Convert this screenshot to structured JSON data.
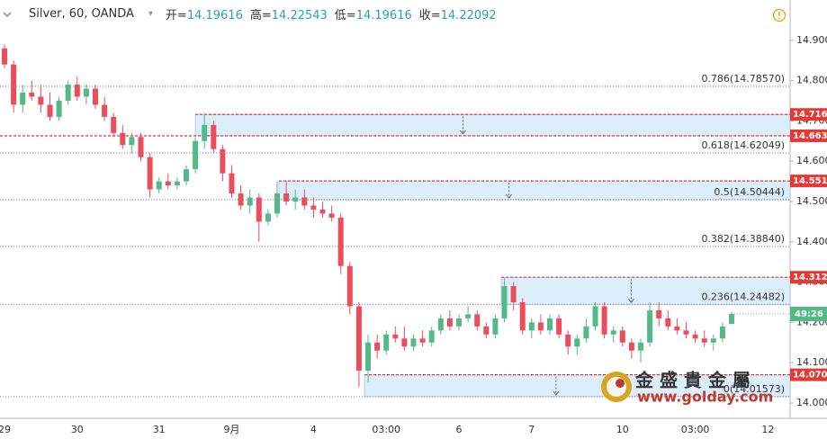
{
  "chart_data": {
    "type": "candlestick",
    "title": "Silver, 60, OANDA",
    "header": [
      {
        "label": "开=",
        "value": "14.19616"
      },
      {
        "label": "高=",
        "value": "14.22543"
      },
      {
        "label": "低=",
        "value": "14.19616"
      },
      {
        "label": "收=",
        "value": "14.22092"
      }
    ],
    "categories": [
      "29",
      null,
      null,
      null,
      null,
      null,
      null,
      null,
      "30",
      null,
      null,
      null,
      null,
      null,
      null,
      null,
      null,
      "31",
      null,
      null,
      null,
      null,
      null,
      null,
      null,
      "9月",
      null,
      null,
      null,
      null,
      null,
      null,
      null,
      null,
      "4",
      null,
      null,
      null,
      null,
      null,
      null,
      null,
      "03:00",
      null,
      null,
      null,
      null,
      null,
      null,
      null,
      "6",
      null,
      null,
      null,
      null,
      null,
      null,
      null,
      "7",
      null,
      null,
      null,
      null,
      null,
      null,
      null,
      null,
      null,
      "10",
      null,
      null,
      null,
      null,
      null,
      null,
      null,
      "03:00",
      null,
      null,
      null,
      null,
      null,
      null,
      null,
      "12"
    ],
    "open": [
      14.88,
      14.84,
      14.74,
      14.77,
      14.76,
      14.74,
      14.71,
      14.75,
      14.79,
      14.76,
      14.78,
      14.74,
      14.71,
      14.67,
      14.64,
      14.66,
      14.61,
      14.53,
      14.55,
      14.54,
      14.55,
      14.58,
      14.65,
      14.69,
      14.63,
      14.57,
      14.52,
      14.49,
      14.51,
      14.45,
      14.47,
      14.52,
      14.5,
      14.51,
      14.49,
      14.48,
      14.47,
      14.46,
      14.34,
      14.24,
      14.08,
      14.15,
      14.13,
      14.17,
      14.16,
      14.14,
      14.16,
      14.15,
      14.18,
      14.21,
      14.19,
      14.21,
      14.22,
      14.19,
      14.17,
      14.21,
      14.29,
      14.25,
      14.18,
      14.2,
      14.18,
      14.21,
      14.17,
      14.14,
      14.16,
      14.19,
      14.24,
      14.17,
      14.18,
      14.15,
      14.13,
      14.15,
      14.23,
      14.21,
      14.19,
      14.18,
      14.17,
      14.16,
      14.15,
      14.16,
      14.19616,
      null,
      null,
      null,
      null
    ],
    "high": [
      14.89,
      14.85,
      14.79,
      14.8,
      14.79,
      14.77,
      14.76,
      14.8,
      14.81,
      14.79,
      14.79,
      14.76,
      14.72,
      14.69,
      14.67,
      14.67,
      14.62,
      14.56,
      14.57,
      14.56,
      14.59,
      14.66,
      14.72,
      14.7,
      14.64,
      14.59,
      14.54,
      14.53,
      14.52,
      14.48,
      14.55,
      14.55,
      14.53,
      14.53,
      14.51,
      14.5,
      14.49,
      14.47,
      14.35,
      14.25,
      14.17,
      14.17,
      14.18,
      14.19,
      14.19,
      14.17,
      14.18,
      14.19,
      14.22,
      14.23,
      14.22,
      14.24,
      14.23,
      14.2,
      14.22,
      14.31,
      14.3,
      14.26,
      14.21,
      14.22,
      14.22,
      14.22,
      14.18,
      14.17,
      14.21,
      14.25,
      14.25,
      14.19,
      14.19,
      14.16,
      14.16,
      14.25,
      14.25,
      14.23,
      14.21,
      14.2,
      14.18,
      14.18,
      14.17,
      14.2,
      14.22543,
      null,
      null,
      null,
      null
    ],
    "low": [
      14.83,
      14.72,
      14.72,
      14.75,
      14.72,
      14.7,
      14.7,
      14.74,
      14.75,
      14.74,
      14.73,
      14.7,
      14.66,
      14.63,
      14.62,
      14.6,
      14.51,
      14.52,
      14.53,
      14.53,
      14.54,
      14.57,
      14.63,
      14.62,
      14.55,
      14.51,
      14.48,
      14.47,
      14.4,
      14.44,
      14.46,
      14.49,
      14.48,
      14.48,
      14.46,
      14.46,
      14.45,
      14.32,
      14.22,
      14.04,
      14.05,
      14.11,
      14.12,
      14.15,
      14.13,
      14.13,
      14.14,
      14.14,
      14.17,
      14.18,
      14.18,
      14.2,
      14.18,
      14.16,
      14.16,
      14.2,
      14.23,
      14.17,
      14.16,
      14.17,
      14.17,
      14.16,
      14.12,
      14.12,
      14.15,
      14.18,
      14.16,
      14.15,
      14.14,
      14.11,
      14.1,
      14.14,
      14.19,
      14.18,
      14.17,
      14.16,
      14.15,
      14.14,
      14.13,
      14.15,
      14.19616,
      null,
      null,
      null,
      null
    ],
    "close": [
      14.84,
      14.74,
      14.77,
      14.76,
      14.74,
      14.71,
      14.75,
      14.79,
      14.76,
      14.78,
      14.74,
      14.71,
      14.67,
      14.64,
      14.66,
      14.61,
      14.53,
      14.55,
      14.54,
      14.55,
      14.58,
      14.65,
      14.69,
      14.63,
      14.57,
      14.52,
      14.49,
      14.51,
      14.45,
      14.47,
      14.52,
      14.5,
      14.51,
      14.49,
      14.48,
      14.47,
      14.46,
      14.34,
      14.24,
      14.08,
      14.15,
      14.13,
      14.17,
      14.16,
      14.14,
      14.16,
      14.15,
      14.18,
      14.21,
      14.19,
      14.21,
      14.22,
      14.19,
      14.17,
      14.21,
      14.29,
      14.25,
      14.18,
      14.2,
      14.18,
      14.21,
      14.17,
      14.14,
      14.16,
      14.19,
      14.24,
      14.17,
      14.18,
      14.15,
      14.13,
      14.15,
      14.23,
      14.21,
      14.19,
      14.18,
      14.17,
      14.16,
      14.15,
      14.16,
      14.19,
      14.22092,
      null,
      null,
      null,
      null
    ],
    "up_color": "#53b987",
    "down_color": "#eb4d5c",
    "ylim": [
      13.962,
      15.0
    ],
    "yticks": [
      {
        "value": 14.9,
        "label": "14.900"
      },
      {
        "value": 14.8,
        "label": "14.800"
      },
      {
        "value": 14.7,
        "label": "14.700"
      },
      {
        "value": 14.6,
        "label": "14.600"
      },
      {
        "value": 14.5,
        "label": "14.500"
      },
      {
        "value": 14.4,
        "label": "14.400"
      },
      {
        "value": 14.3,
        "label": "14.300"
      },
      {
        "value": 14.2,
        "label": "14.200"
      },
      {
        "value": 14.1,
        "label": "14.100"
      },
      {
        "value": 14.0,
        "label": "14.000"
      }
    ],
    "fib_levels": [
      {
        "value": 14.7857,
        "label": "0.786(14.78570)"
      },
      {
        "value": 14.62049,
        "label": "0.618(14.62049)"
      },
      {
        "value": 14.50444,
        "label": "0.5(14.50444)"
      },
      {
        "value": 14.3884,
        "label": "0.382(14.38840)"
      },
      {
        "value": 14.24482,
        "label": "0.236(14.24482)"
      },
      {
        "value": 14.01573,
        "label": "0(14.01573)"
      }
    ],
    "price_levels": [
      {
        "value": 14.716,
        "label": "14.716"
      },
      {
        "value": 14.663,
        "label": "14.663"
      },
      {
        "value": 14.551,
        "label": "14.551"
      },
      {
        "value": 14.312,
        "label": "14.312"
      },
      {
        "value": 14.07,
        "label": "14.070"
      }
    ],
    "level_color": "#e53935",
    "zone_color": "#dceefc",
    "countdown": "49:26",
    "watermark": {
      "name": "金 盛 貴 金 屬",
      "url": "www.golday.com"
    }
  }
}
